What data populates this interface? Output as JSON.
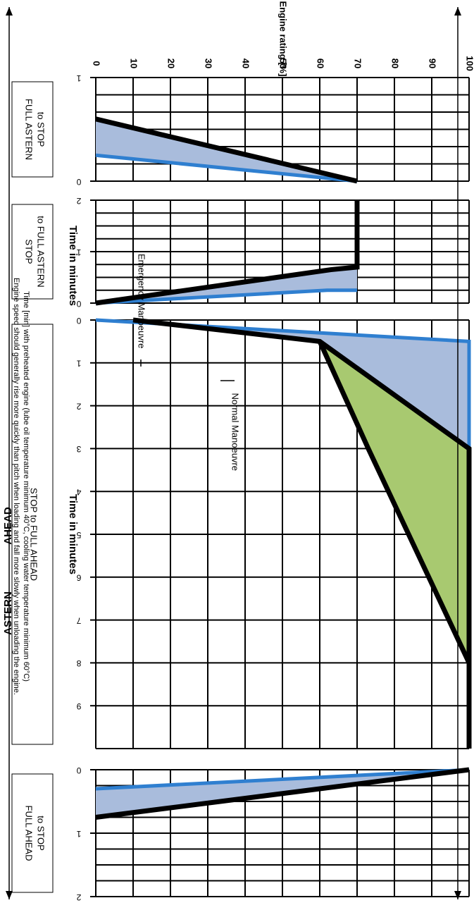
{
  "headers": {
    "astern": "ASTERN",
    "ahead": "AHEAD"
  },
  "footnote": {
    "line1": "Time [min] with preheated engine (lube oil temperature minimum 40°C, cooling water temperature minimum 60°C)",
    "line2": "Engine speed should generally rise more quickly than pitch when loading and fall more slowly when unloading the engine."
  },
  "colors": {
    "grid": "#000000",
    "emergency_line": "#2f7fd0",
    "normal_line": "#000000",
    "blue_fill": "#a9bcdc",
    "green_fill": "#a8c970"
  },
  "chart_data": [
    {
      "type": "line",
      "title": "FULL ASTERN to STOP",
      "xlabel": "",
      "ylabel": "Engine rating [%]",
      "x_ticks": [
        "1",
        "0"
      ],
      "xlim": [
        1,
        0
      ],
      "y_ticks": [
        "0",
        "10",
        "20",
        "30",
        "40",
        "50",
        "60",
        "70",
        "80",
        "90",
        "100"
      ],
      "ylim": [
        0,
        100
      ],
      "grid": true,
      "series": [
        {
          "name": "Emergency Manoeuvre",
          "x": [
            0,
            0.25
          ],
          "y": [
            70,
            0
          ]
        },
        {
          "name": "Normal Manoeuvre",
          "x": [
            0,
            0.6
          ],
          "y": [
            70,
            0
          ]
        }
      ]
    },
    {
      "type": "line",
      "title": "STOP to FULL ASTERN",
      "xlabel": "Time in minutes",
      "ylabel": "",
      "x_ticks": [
        "2",
        "1",
        "0"
      ],
      "xlim": [
        2,
        0
      ],
      "ylim": [
        0,
        100
      ],
      "grid": true,
      "series": [
        {
          "name": "Emergency Manoeuvre",
          "x": [
            0,
            0.25,
            0.25
          ],
          "y": [
            0,
            62,
            70
          ]
        },
        {
          "name": "Normal Manoeuvre",
          "x": [
            0,
            0.65,
            0.7,
            2
          ],
          "y": [
            0,
            63,
            70,
            70
          ]
        }
      ]
    },
    {
      "type": "line",
      "title": "STOP to FULL AHEAD",
      "xlabel": "Time in minutes",
      "ylabel": "",
      "x_ticks": [
        "0",
        "1",
        "2",
        "3",
        "4",
        "5",
        "6",
        "7",
        "8",
        "9"
      ],
      "xlim": [
        0,
        10
      ],
      "ylim": [
        0,
        100
      ],
      "grid": true,
      "annotations": [
        "Emergency Manoeuvre",
        "Normal Manoeuvre"
      ],
      "series": [
        {
          "name": "Emergency Manoeuvre",
          "x": [
            0,
            0.5,
            3,
            10
          ],
          "y": [
            0,
            100,
            100,
            100
          ]
        },
        {
          "name": "Normal Manoeuvre",
          "x": [
            0,
            0.5,
            3,
            10
          ],
          "y": [
            10,
            60,
            100,
            100
          ]
        },
        {
          "name": "Normal Manoeuvre",
          "x": [
            0.5,
            3,
            8,
            10
          ],
          "y": [
            60,
            73,
            100,
            100
          ]
        }
      ]
    },
    {
      "type": "line",
      "title": "FULL AHEAD to STOP",
      "xlabel": "",
      "ylabel": "",
      "x_ticks": [
        "0",
        "1",
        "2"
      ],
      "xlim": [
        0,
        2
      ],
      "ylim": [
        0,
        100
      ],
      "grid": true,
      "series": [
        {
          "name": "Emergency Manoeuvre",
          "x": [
            0,
            0.3
          ],
          "y": [
            100,
            0
          ]
        },
        {
          "name": "Normal Manoeuvre",
          "x": [
            0,
            0.75
          ],
          "y": [
            100,
            0
          ]
        }
      ]
    }
  ]
}
